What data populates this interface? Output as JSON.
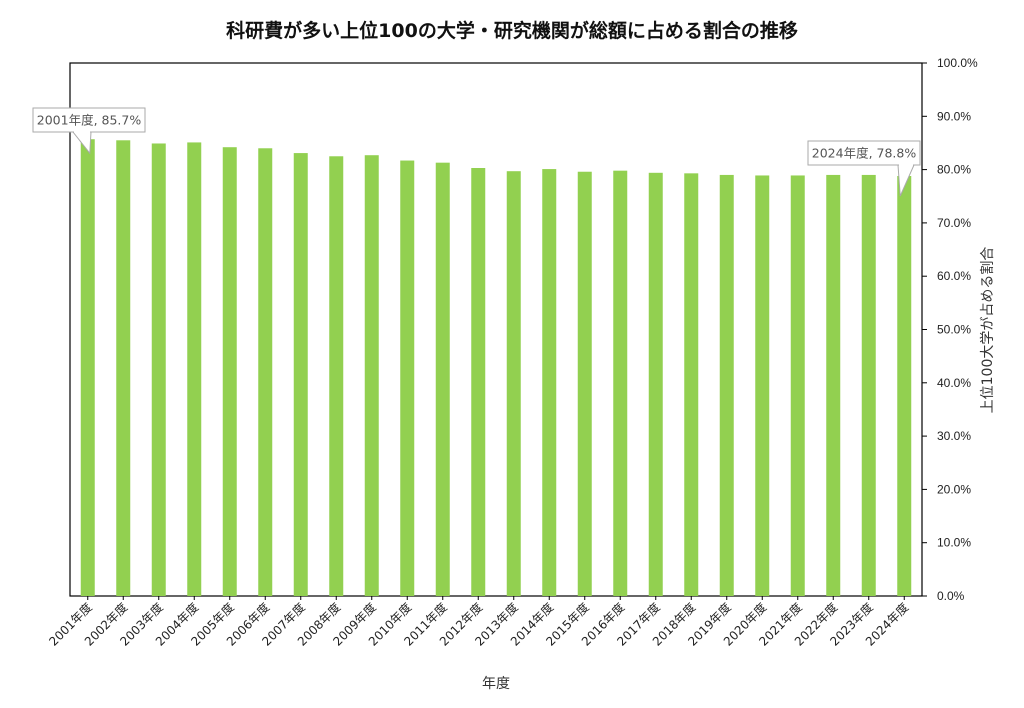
{
  "chart_data": {
    "type": "bar",
    "title": "科研費が多い上位100の大学・研究機関が総額に占める割合の推移",
    "xlabel": "年度",
    "ylabel": "上位100大学が占める割合",
    "categories": [
      "2001年度",
      "2002年度",
      "2003年度",
      "2004年度",
      "2005年度",
      "2006年度",
      "2007年度",
      "2008年度",
      "2009年度",
      "2010年度",
      "2011年度",
      "2012年度",
      "2013年度",
      "2014年度",
      "2015年度",
      "2016年度",
      "2017年度",
      "2018年度",
      "2019年度",
      "2020年度",
      "2021年度",
      "2022年度",
      "2023年度",
      "2024年度"
    ],
    "values": [
      85.7,
      85.5,
      84.9,
      85.1,
      84.2,
      84.0,
      83.1,
      82.5,
      82.7,
      81.7,
      81.3,
      80.3,
      79.7,
      80.1,
      79.6,
      79.8,
      79.4,
      79.3,
      79.0,
      78.9,
      78.9,
      79.0,
      79.0,
      78.8
    ],
    "ylim": [
      0,
      100
    ],
    "ytick_step": 10,
    "ytick_labels": [
      "0.0%",
      "10.0%",
      "20.0%",
      "30.0%",
      "40.0%",
      "50.0%",
      "60.0%",
      "70.0%",
      "80.0%",
      "90.0%",
      "100.0%"
    ],
    "y_axis_side": "right",
    "grid": false,
    "bar_color": "#92d050",
    "annotations": [
      {
        "index": 0,
        "text": "2001年度, 85.7%"
      },
      {
        "index": 23,
        "text": "2024年度, 78.8%"
      }
    ]
  }
}
